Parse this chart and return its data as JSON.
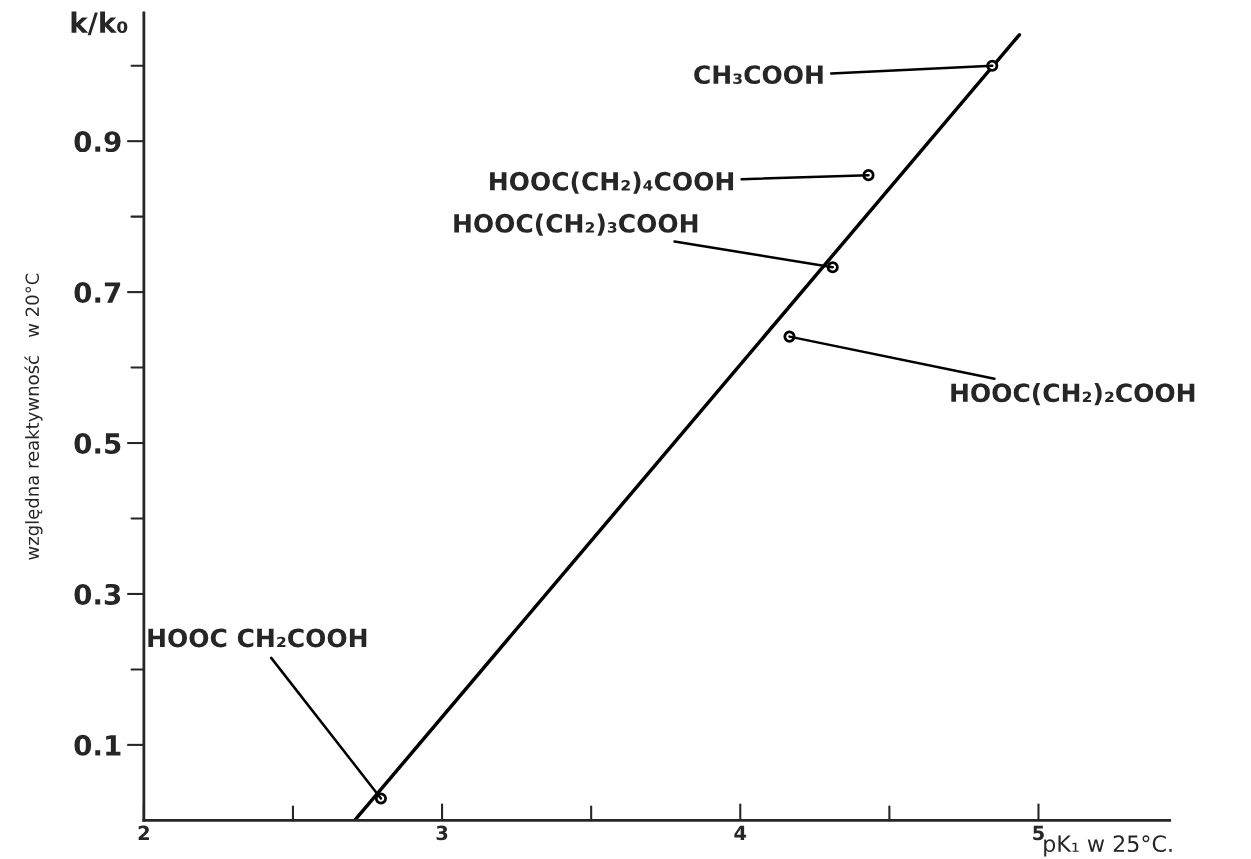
{
  "chart_data": {
    "type": "scatter",
    "xlabel": "pK₁ w 25°C.",
    "ylabel": "względna reaktywność   w 20°C",
    "xlim": [
      2,
      5.44
    ],
    "ylim": [
      0,
      1.07
    ],
    "xticks": [
      2,
      {
        "value": 2.5,
        "label": null
      },
      3,
      {
        "value": 3.5,
        "label": null
      },
      4,
      {
        "value": 4.5,
        "label": null
      },
      5
    ],
    "yticks": [
      0.1,
      {
        "value": 0.2,
        "label": null
      },
      0.3,
      {
        "value": 0.4,
        "label": null
      },
      0.5,
      {
        "value": 0.6,
        "label": null
      },
      0.7,
      {
        "value": 0.8,
        "label": null
      },
      0.9,
      {
        "value": 1.0,
        "label": null
      }
    ],
    "grid": false,
    "series": [
      {
        "marker": "circle",
        "color": "#000000",
        "x": [
          2.795,
          4.165,
          4.31,
          4.43,
          4.845
        ],
        "values": [
          0.029,
          0.641,
          0.733,
          0.855,
          1.0
        ]
      },
      {
        "type": "line",
        "color": "#000000",
        "x": [
          2.707,
          4.936
        ],
        "values": [
          0.0,
          1.041
        ]
      }
    ],
    "annotations": [
      "k/k₀",
      {
        "text": "HOOC CH₂COOH",
        "x": 2.795,
        "y": 0.029
      },
      {
        "text": "HOOC(CH₂)₂COOH",
        "x": 4.165,
        "y": 0.641
      },
      {
        "text": "HOOC(CH₂)₃COOH",
        "x": 4.31,
        "y": 0.733
      },
      {
        "text": "HOOC(CH₂)₄COOH",
        "x": 4.43,
        "y": 0.855
      },
      {
        "text": "CH₃COOH",
        "x": 4.845,
        "y": 1.0
      }
    ]
  }
}
